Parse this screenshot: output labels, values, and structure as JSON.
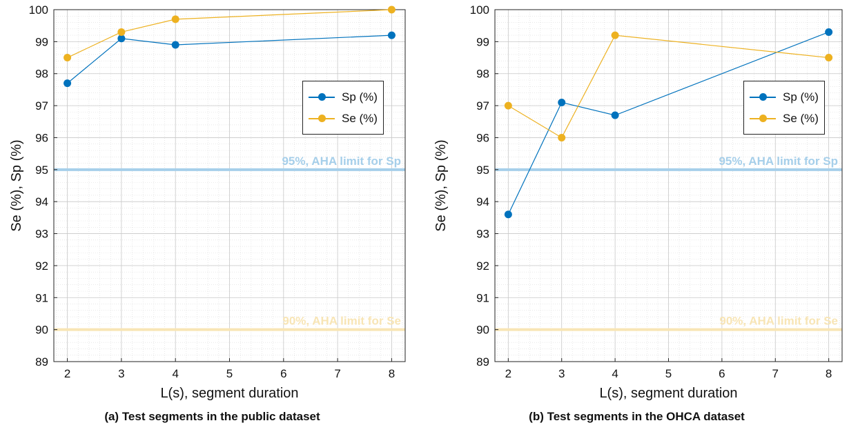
{
  "colors": {
    "sp": "#0072BD",
    "se": "#EDB120",
    "sp_limit": "#A6CFEA",
    "se_limit": "#F8E5B5"
  },
  "chart_data": [
    {
      "type": "line",
      "caption": "(a) Test segments in the public dataset",
      "xlabel": "L(s), segment duration",
      "ylabel": "Se (%), Sp (%)",
      "xlim": [
        1.75,
        8.25
      ],
      "ylim": [
        89,
        100
      ],
      "x_ticks": [
        "2",
        "3",
        "4",
        "5",
        "6",
        "7",
        "8"
      ],
      "y_ticks": [
        "89",
        "90",
        "91",
        "92",
        "93",
        "94",
        "95",
        "96",
        "97",
        "98",
        "99",
        "100"
      ],
      "grid": true,
      "legend_position": "right",
      "x": [
        2,
        3,
        4,
        8
      ],
      "series": [
        {
          "name": "Sp (%)",
          "values": [
            97.7,
            99.1,
            98.9,
            99.2
          ]
        },
        {
          "name": "Se (%)",
          "values": [
            98.5,
            99.3,
            99.7,
            100.0
          ]
        }
      ],
      "reference_lines": [
        {
          "value": 95,
          "label": "95%, AHA limit for Sp"
        },
        {
          "value": 90,
          "label": "90%, AHA limit for Se"
        }
      ]
    },
    {
      "type": "line",
      "caption": "(b) Test segments in the OHCA dataset",
      "xlabel": "L(s), segment duration",
      "ylabel": "Se (%), Sp (%)",
      "xlim": [
        1.75,
        8.25
      ],
      "ylim": [
        89,
        100
      ],
      "x_ticks": [
        "2",
        "3",
        "4",
        "5",
        "6",
        "7",
        "8"
      ],
      "y_ticks": [
        "89",
        "90",
        "91",
        "92",
        "93",
        "94",
        "95",
        "96",
        "97",
        "98",
        "99",
        "100"
      ],
      "grid": true,
      "legend_position": "right",
      "x": [
        2,
        3,
        4,
        8
      ],
      "series": [
        {
          "name": "Sp (%)",
          "values": [
            93.6,
            97.1,
            96.7,
            99.3
          ]
        },
        {
          "name": "Se (%)",
          "values": [
            97.0,
            96.0,
            99.2,
            98.5
          ]
        }
      ],
      "reference_lines": [
        {
          "value": 95,
          "label": "95%, AHA limit for Sp"
        },
        {
          "value": 90,
          "label": "90%, AHA limit for Se"
        }
      ]
    }
  ]
}
